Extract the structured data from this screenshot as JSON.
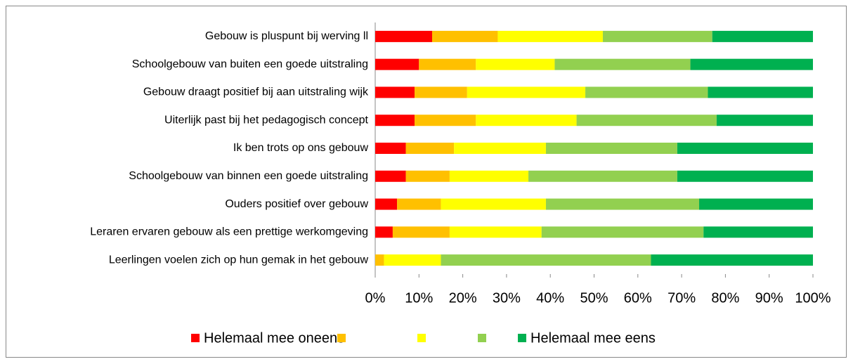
{
  "chart_data": {
    "type": "stacked-barh",
    "categories": [
      "Gebouw is pluspunt bij werving ll",
      "Schoolgebouw van buiten een goede uitstraling",
      "Gebouw draagt positief bij aan uitstraling wijk",
      "Uiterlijk past bij het pedagogisch concept",
      "Ik ben trots op ons gebouw",
      "Schoolgebouw van binnen een goede uitstraling",
      "Ouders positief over gebouw",
      "Leraren ervaren gebouw als een prettige werkomgeving",
      "Leerlingen voelen zich op hun gemak in het gebouw"
    ],
    "series": [
      {
        "name": "Helemaal mee oneens",
        "color": "#ff0000",
        "values": [
          13,
          10,
          9,
          9,
          7,
          7,
          5,
          4,
          0
        ]
      },
      {
        "color": "#ffc000",
        "values": [
          15,
          13,
          12,
          14,
          11,
          10,
          10,
          13,
          2
        ]
      },
      {
        "color": "#ffff00",
        "values": [
          24,
          18,
          27,
          23,
          21,
          18,
          24,
          21,
          13
        ]
      },
      {
        "color": "#92d050",
        "values": [
          25,
          31,
          28,
          32,
          30,
          34,
          35,
          37,
          48
        ]
      },
      {
        "name": "Helemaal mee eens",
        "color": "#00b050",
        "values": [
          23,
          28,
          24,
          22,
          31,
          31,
          26,
          25,
          37
        ]
      }
    ],
    "xlim": [
      0,
      100
    ],
    "xticks": [
      {
        "value": 0,
        "label": "0%"
      },
      {
        "value": 10,
        "label": "10%"
      },
      {
        "value": 20,
        "label": "20%"
      },
      {
        "value": 30,
        "label": "30%"
      },
      {
        "value": 40,
        "label": "40%"
      },
      {
        "value": 50,
        "label": "50%"
      },
      {
        "value": 60,
        "label": "60%"
      },
      {
        "value": 70,
        "label": "70%"
      },
      {
        "value": 80,
        "label": "80%"
      },
      {
        "value": 90,
        "label": "90%"
      },
      {
        "value": 100,
        "label": "100%"
      }
    ],
    "legend": "bottom"
  }
}
